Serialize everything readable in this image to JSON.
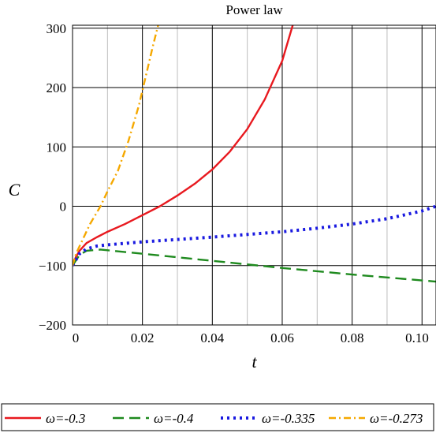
{
  "chart_data": {
    "type": "line",
    "title": "Power law",
    "xlabel": "t",
    "ylabel": "C",
    "xlim": [
      0,
      0.104
    ],
    "ylim": [
      -200,
      305
    ],
    "x_ticks": [
      {
        "value": 0,
        "label": "0"
      },
      {
        "value": 0.02,
        "label": "0.02"
      },
      {
        "value": 0.04,
        "label": "0.04"
      },
      {
        "value": 0.06,
        "label": "0.06"
      },
      {
        "value": 0.08,
        "label": "0.08"
      },
      {
        "value": 0.1,
        "label": "0.10"
      }
    ],
    "x_minor_ticks": [
      0.01,
      0.03,
      0.05,
      0.07,
      0.09
    ],
    "y_ticks": [
      {
        "value": -200,
        "label": "−200"
      },
      {
        "value": -100,
        "label": "−100"
      },
      {
        "value": 0,
        "label": "0"
      },
      {
        "value": 100,
        "label": "100"
      },
      {
        "value": 200,
        "label": "200"
      },
      {
        "value": 300,
        "label": "300"
      }
    ],
    "grid": true,
    "legend_position": "bottom",
    "series": [
      {
        "name": "ω=-0.3",
        "color": "#e8191f",
        "dash": "solid",
        "points": [
          [
            0,
            -100
          ],
          [
            0.001,
            -85
          ],
          [
            0.002,
            -75
          ],
          [
            0.004,
            -62
          ],
          [
            0.007,
            -52
          ],
          [
            0.01,
            -43
          ],
          [
            0.015,
            -30
          ],
          [
            0.02,
            -15
          ],
          [
            0.025,
            0
          ],
          [
            0.03,
            18
          ],
          [
            0.035,
            38
          ],
          [
            0.04,
            62
          ],
          [
            0.045,
            92
          ],
          [
            0.05,
            130
          ],
          [
            0.055,
            180
          ],
          [
            0.06,
            245
          ],
          [
            0.063,
            305
          ]
        ]
      },
      {
        "name": "ω=-0.4",
        "color": "#1e8a1e",
        "dash": "long-dash",
        "points": [
          [
            0,
            -100
          ],
          [
            0.002,
            -82
          ],
          [
            0.004,
            -75
          ],
          [
            0.008,
            -73
          ],
          [
            0.02,
            -80
          ],
          [
            0.04,
            -92
          ],
          [
            0.06,
            -104
          ],
          [
            0.08,
            -115
          ],
          [
            0.1,
            -125
          ],
          [
            0.104,
            -127
          ]
        ]
      },
      {
        "name": "ω=-0.335",
        "color": "#1a1ae0",
        "dash": "dot",
        "points": [
          [
            0,
            -100
          ],
          [
            0.002,
            -80
          ],
          [
            0.004,
            -72
          ],
          [
            0.007,
            -67
          ],
          [
            0.01,
            -65
          ],
          [
            0.02,
            -60
          ],
          [
            0.04,
            -52
          ],
          [
            0.06,
            -43
          ],
          [
            0.07,
            -37
          ],
          [
            0.08,
            -30
          ],
          [
            0.09,
            -21
          ],
          [
            0.1,
            -8
          ],
          [
            0.104,
            0
          ]
        ]
      },
      {
        "name": "ω=-0.273",
        "color": "#f5a800",
        "dash": "dash-dot",
        "points": [
          [
            0,
            -100
          ],
          [
            0.001,
            -80
          ],
          [
            0.003,
            -55
          ],
          [
            0.005,
            -30
          ],
          [
            0.008,
            0
          ],
          [
            0.01,
            25
          ],
          [
            0.013,
            60
          ],
          [
            0.016,
            110
          ],
          [
            0.019,
            170
          ],
          [
            0.021,
            220
          ],
          [
            0.023,
            270
          ],
          [
            0.0245,
            305
          ]
        ]
      }
    ]
  }
}
